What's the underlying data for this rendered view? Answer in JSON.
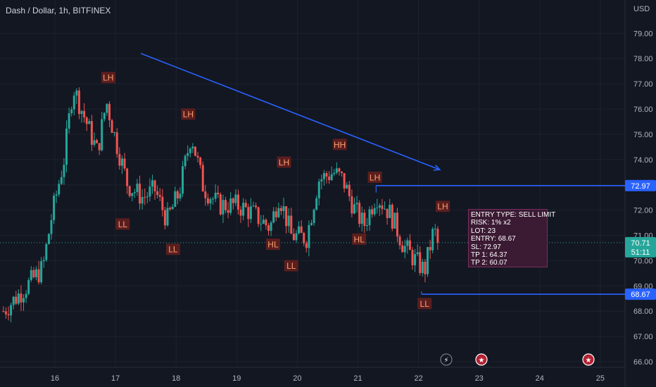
{
  "header": {
    "symbol_title": "Dash / Dollar, 1h, BITFINEX"
  },
  "currency": "USD",
  "colors": {
    "up": "#26a69a",
    "down": "#ef5350",
    "trend": "#2962ff",
    "label_bg": "#5b1e1e",
    "label_text": "#f7a072"
  },
  "info_box": {
    "lines": [
      "ENTRY TYPE: SELL LIMIT",
      "RISK: 1% x2",
      "LOT: 23",
      "ENTRY: 68.67",
      "SL: 72.97",
      "TP 1: 64.37",
      "TP 2: 60.07"
    ]
  },
  "price_tags": {
    "sl": "72.97",
    "entry": "68.67",
    "current": "70.71",
    "countdown": "51:11"
  },
  "chart_data": {
    "type": "candlestick",
    "title": "Dash / Dollar, 1h, BITFINEX",
    "ylabel": "USD",
    "ylim": [
      65.8,
      79.6
    ],
    "y_ticks": [
      "66.00",
      "67.00",
      "68.00",
      "69.00",
      "70.00",
      "71.00",
      "72.00",
      "73.00",
      "74.00",
      "75.00",
      "76.00",
      "77.00",
      "78.00",
      "79.00"
    ],
    "x_ticks": [
      "16",
      "17",
      "18",
      "19",
      "20",
      "21",
      "22",
      "23",
      "24",
      "25"
    ],
    "x_range_days": [
      15.1,
      25.35
    ],
    "grid": true,
    "price_path": [
      {
        "day": 15.15,
        "price": 68.0
      },
      {
        "day": 15.5,
        "price": 68.9
      },
      {
        "day": 15.8,
        "price": 69.7
      },
      {
        "day": 15.95,
        "price": 71.8
      },
      {
        "day": 16.15,
        "price": 74.0
      },
      {
        "day": 16.3,
        "price": 76.9
      },
      {
        "day": 16.5,
        "price": 75.6
      },
      {
        "day": 16.7,
        "price": 74.3
      },
      {
        "day": 16.85,
        "price": 76.3
      },
      {
        "day": 17.0,
        "price": 74.8
      },
      {
        "day": 17.2,
        "price": 73.0
      },
      {
        "day": 17.45,
        "price": 72.5
      },
      {
        "day": 17.65,
        "price": 72.8
      },
      {
        "day": 17.85,
        "price": 71.6
      },
      {
        "day": 18.05,
        "price": 72.7
      },
      {
        "day": 18.25,
        "price": 75.0
      },
      {
        "day": 18.45,
        "price": 72.9
      },
      {
        "day": 18.7,
        "price": 72.2
      },
      {
        "day": 19.0,
        "price": 72.2
      },
      {
        "day": 19.25,
        "price": 71.9
      },
      {
        "day": 19.55,
        "price": 71.3
      },
      {
        "day": 19.7,
        "price": 72.6
      },
      {
        "day": 19.9,
        "price": 71.0
      },
      {
        "day": 20.15,
        "price": 70.9
      },
      {
        "day": 20.35,
        "price": 73.2
      },
      {
        "day": 20.6,
        "price": 73.5
      },
      {
        "day": 20.75,
        "price": 73.2
      },
      {
        "day": 20.95,
        "price": 72.0
      },
      {
        "day": 21.1,
        "price": 71.4
      },
      {
        "day": 21.3,
        "price": 72.6
      },
      {
        "day": 21.55,
        "price": 71.8
      },
      {
        "day": 21.75,
        "price": 70.6
      },
      {
        "day": 21.95,
        "price": 70.0
      },
      {
        "day": 22.1,
        "price": 69.6
      },
      {
        "day": 22.25,
        "price": 71.2
      },
      {
        "day": 22.35,
        "price": 70.71
      }
    ],
    "trendline": {
      "start": {
        "day": 17.42,
        "price": 78.2
      },
      "end": {
        "day": 22.35,
        "price": 73.6
      }
    },
    "levels": [
      {
        "name": "SL",
        "price": 72.97,
        "from_day": 21.3
      },
      {
        "name": "ENTRY",
        "price": 68.67,
        "from_day": 22.05
      }
    ],
    "current_price": 70.71,
    "pivot_labels": [
      {
        "text": "LH",
        "day": 16.88,
        "price": 77.25
      },
      {
        "text": "LL",
        "day": 17.12,
        "price": 71.45
      },
      {
        "text": "LH",
        "day": 18.2,
        "price": 75.8
      },
      {
        "text": "LL",
        "day": 17.95,
        "price": 70.45
      },
      {
        "text": "LH",
        "day": 19.78,
        "price": 73.9
      },
      {
        "text": "HL",
        "day": 19.6,
        "price": 70.65
      },
      {
        "text": "LL",
        "day": 19.9,
        "price": 69.8
      },
      {
        "text": "HH",
        "day": 20.7,
        "price": 74.6
      },
      {
        "text": "LH",
        "day": 21.28,
        "price": 73.3
      },
      {
        "text": "HL",
        "day": 21.02,
        "price": 70.85
      },
      {
        "text": "LH",
        "day": 22.4,
        "price": 72.15
      },
      {
        "text": "LL",
        "day": 22.1,
        "price": 68.3
      }
    ]
  }
}
